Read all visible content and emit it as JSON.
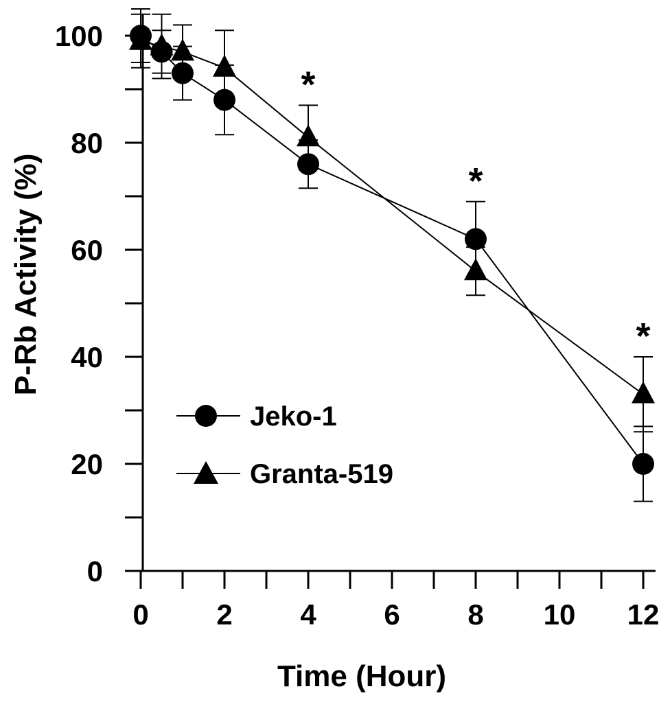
{
  "chart_data": {
    "type": "line",
    "xlabel": "Time (Hour)",
    "ylabel": "P-Rb Activity (%)",
    "x_ticks": [
      "0",
      "2",
      "4",
      "6",
      "8",
      "10",
      "12"
    ],
    "y_ticks": [
      "0",
      "20",
      "40",
      "60",
      "80",
      "100"
    ],
    "xlim": [
      -0.2,
      12.2
    ],
    "ylim": [
      0,
      100
    ],
    "legend_position": "left-bottom",
    "significance_marker": "*",
    "significant_x": [
      4,
      8,
      12
    ],
    "series": [
      {
        "name": "Jeko-1",
        "marker": "circle",
        "x": [
          0,
          0.5,
          1,
          2,
          4,
          8,
          12
        ],
        "y": [
          100,
          97,
          93,
          88,
          76,
          62,
          20
        ],
        "error": [
          5,
          4,
          5,
          6.5,
          4.5,
          7,
          7
        ]
      },
      {
        "name": "Granta-519",
        "marker": "triangle",
        "x": [
          0,
          0.5,
          1,
          2,
          4,
          8,
          12
        ],
        "y": [
          99,
          98,
          97,
          94,
          81,
          56,
          33
        ],
        "error": [
          5,
          6,
          5,
          7,
          6,
          4.5,
          7
        ]
      }
    ]
  }
}
